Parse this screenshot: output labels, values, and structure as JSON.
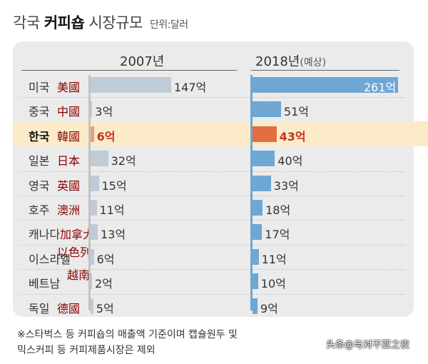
{
  "title": {
    "prefix": "각국",
    "bold": "커피숍",
    "rest": "시장규모",
    "unit": "단위:달러"
  },
  "columns": {
    "left": "2007년",
    "right_year": "2018년",
    "right_note": "(예상)"
  },
  "chart_data": {
    "type": "bar",
    "categories": [
      "미국",
      "중국",
      "한국",
      "일본",
      "영국",
      "호주",
      "캐나다",
      "이스라엘",
      "베트남",
      "독일"
    ],
    "category_overlays": [
      "美國",
      "中國",
      "韓國",
      "日本",
      "英國",
      "澳洲",
      "加拿大",
      "以色列",
      "越南",
      "德國"
    ],
    "highlight_index": 2,
    "series": [
      {
        "name": "2007년",
        "values": [
          147,
          3,
          6,
          32,
          15,
          11,
          13,
          6,
          2,
          5
        ],
        "labels": [
          "147억",
          "3억",
          "6억",
          "32억",
          "15억",
          "11억",
          "13억",
          "6억",
          "2억",
          "5억"
        ]
      },
      {
        "name": "2018년(예상)",
        "values": [
          261,
          51,
          43,
          40,
          33,
          18,
          17,
          11,
          10,
          9
        ],
        "labels": [
          "261억",
          "51억",
          "43억",
          "40억",
          "33억",
          "18억",
          "17억",
          "11억",
          "10억",
          "9억"
        ]
      }
    ],
    "unit": "억 달러",
    "colors": {
      "left": "#bfcbd7",
      "right": "#6ea7d4",
      "highlight_left": "#e6a07e",
      "highlight_right": "#e36e3f",
      "highlight_row": "#fcebc9",
      "overlay_text": "#8b0000"
    }
  },
  "notes": [
    "※스타벅스 등 커피숍의 매출액 기준이며 캡슐원두 및",
    "믹스커피 등 커피제품시장은 제외"
  ],
  "watermark": "头条@与对不亚之夜"
}
